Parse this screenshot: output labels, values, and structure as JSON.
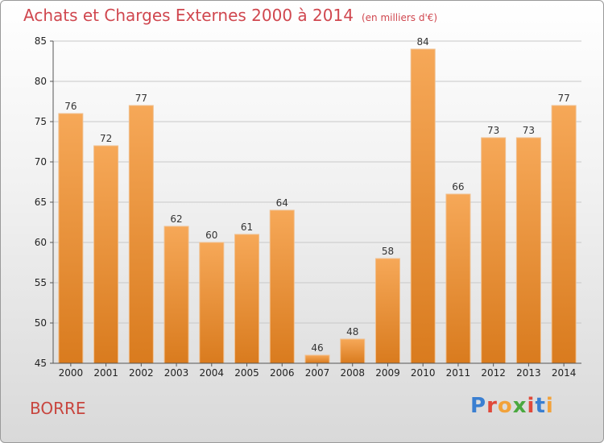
{
  "title": "Achats et Charges Externes 2000 à 2014",
  "subtitle": "(en milliers d'€)",
  "commune": "BORRE",
  "logo": "Proxiti",
  "colors": {
    "bar_top": "#f6a858",
    "bar_bottom": "#d97b1e",
    "title": "#d0474f"
  },
  "chart_data": {
    "type": "bar",
    "title": "Achats et Charges Externes 2000 à 2014",
    "subtitle": "(en milliers d'€)",
    "categories": [
      "2000",
      "2001",
      "2002",
      "2003",
      "2004",
      "2005",
      "2006",
      "2007",
      "2008",
      "2009",
      "2010",
      "2011",
      "2012",
      "2013",
      "2014"
    ],
    "values": [
      76,
      72,
      77,
      62,
      60,
      61,
      64,
      46,
      48,
      58,
      84,
      66,
      73,
      73,
      77
    ],
    "ylim": [
      45,
      85
    ],
    "yticks": [
      45,
      50,
      55,
      60,
      65,
      70,
      75,
      80,
      85
    ],
    "grid": true,
    "xlabel": "",
    "ylabel": ""
  }
}
